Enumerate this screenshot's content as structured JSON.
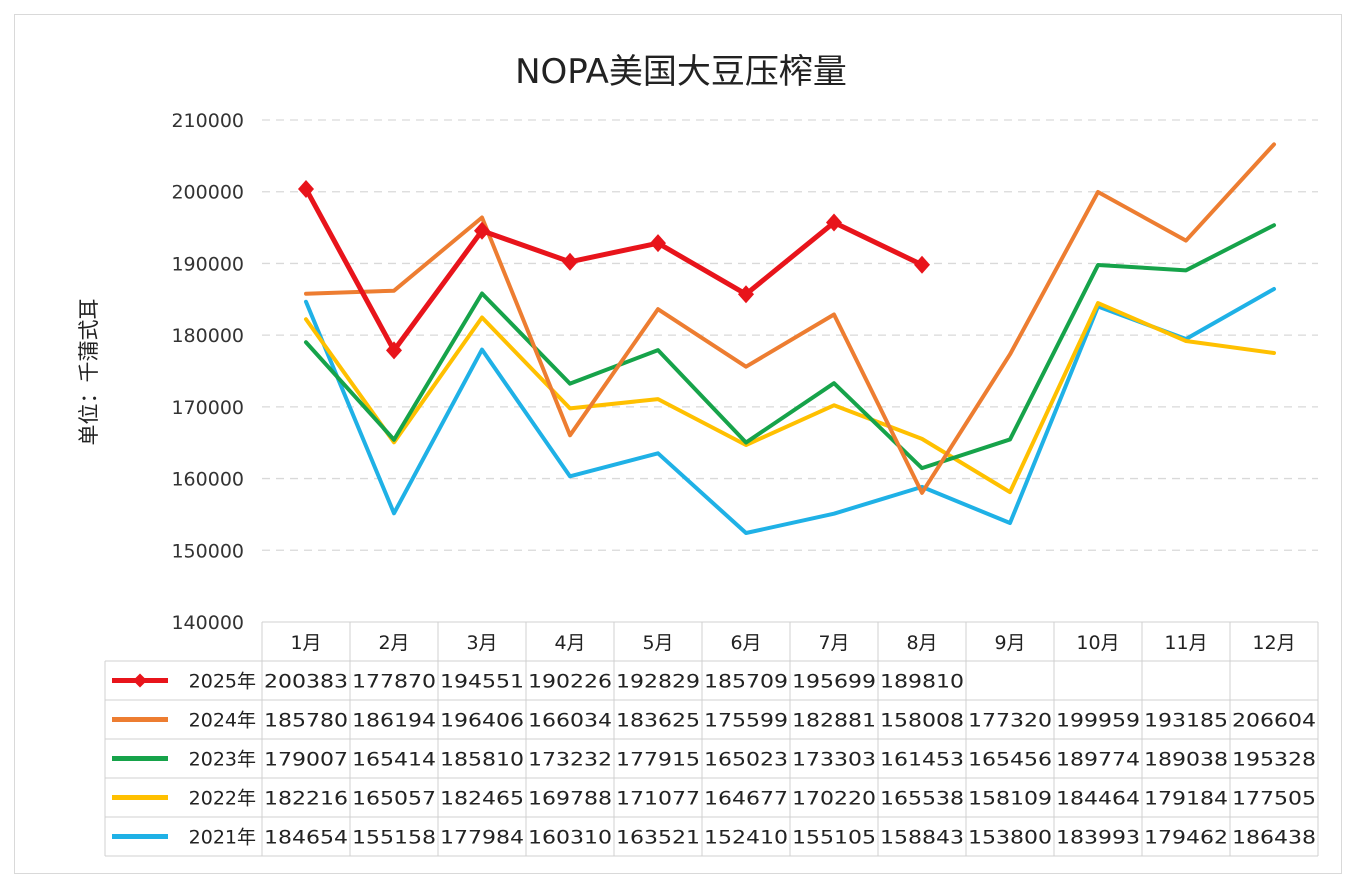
{
  "chart_data": {
    "type": "line",
    "title": "NOPA美国大豆压榨量",
    "ylabel": "单位：千蒲式耳",
    "xlabel": "",
    "ylim": [
      140000,
      210000
    ],
    "yticks": [
      210000,
      200000,
      190000,
      180000,
      170000,
      160000,
      150000,
      140000
    ],
    "categories": [
      "1月",
      "2月",
      "3月",
      "4月",
      "5月",
      "6月",
      "7月",
      "8月",
      "9月",
      "10月",
      "11月",
      "12月"
    ],
    "grid": "horizontal dashed",
    "legend": "data table below plot",
    "series": [
      {
        "name": "2025年",
        "color": "#e8141b",
        "markers": true,
        "values": [
          200383,
          177870,
          194551,
          190226,
          192829,
          185709,
          195699,
          189810,
          null,
          null,
          null,
          null
        ]
      },
      {
        "name": "2024年",
        "color": "#ed7d31",
        "markers": false,
        "values": [
          185780,
          186194,
          196406,
          166034,
          183625,
          175599,
          182881,
          158008,
          177320,
          199959,
          193185,
          206604
        ]
      },
      {
        "name": "2023年",
        "color": "#16a34a",
        "markers": false,
        "values": [
          179007,
          165414,
          185810,
          173232,
          177915,
          165023,
          173303,
          161453,
          165456,
          189774,
          189038,
          195328
        ]
      },
      {
        "name": "2022年",
        "color": "#ffc000",
        "markers": false,
        "values": [
          182216,
          165057,
          182465,
          169788,
          171077,
          164677,
          170220,
          165538,
          158109,
          184464,
          179184,
          177505
        ]
      },
      {
        "name": "2021年",
        "color": "#1fb1e6",
        "markers": false,
        "values": [
          184654,
          155158,
          177984,
          160310,
          163521,
          152410,
          155105,
          158843,
          153800,
          183993,
          179462,
          186438
        ]
      }
    ]
  }
}
